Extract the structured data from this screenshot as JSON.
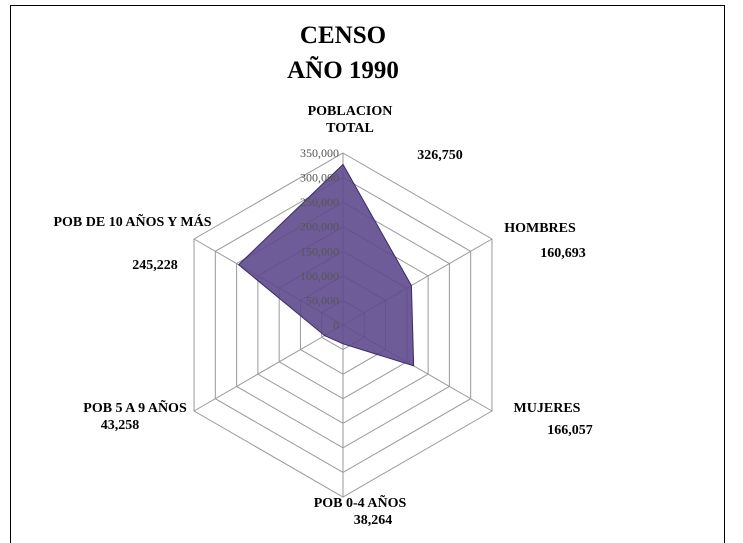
{
  "chart_data": {
    "type": "radar",
    "title": [
      "CENSO",
      "AÑO 1990"
    ],
    "categories": [
      "POBLACION TOTAL",
      "HOMBRES",
      "MUJERES",
      "POB 0-4 AÑOS",
      "POB 5 A 9 AÑOS",
      "POB DE 10 AÑOS Y MÁS"
    ],
    "series": [
      {
        "name": "CENSO AÑO 1990",
        "color": "#5e4a8e",
        "values": [
          326750,
          160693,
          166057,
          38264,
          43258,
          245228
        ],
        "value_labels": [
          "326,750",
          "160,693",
          "166,057",
          "38,264",
          "43,258",
          "245,228"
        ]
      }
    ],
    "rlim": [
      0,
      350000
    ],
    "rticks": [
      0,
      {
        "value": 50000,
        "label": "50,000"
      },
      {
        "value": 100000,
        "label": "100,000"
      },
      {
        "value": 150000,
        "label": "150,000"
      },
      {
        "value": 200000,
        "label": "200,000"
      },
      {
        "value": 250000,
        "label": "250,000"
      },
      {
        "value": 300000,
        "label": "300,000"
      },
      {
        "value": 350000,
        "label": "350,000"
      }
    ],
    "grid": true
  }
}
